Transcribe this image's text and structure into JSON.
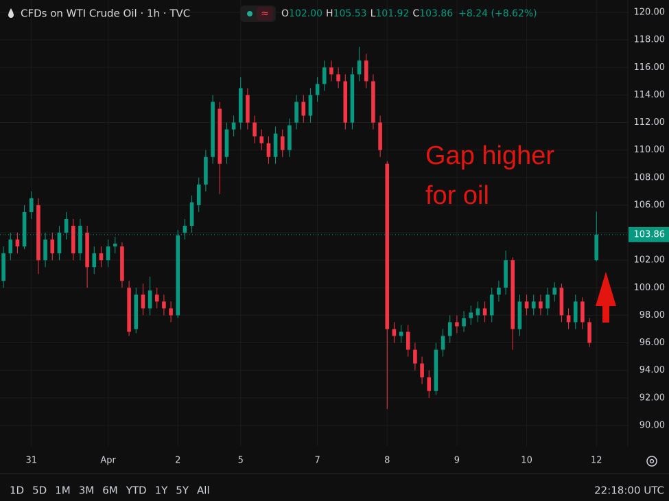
{
  "chart_data": {
    "type": "candlestick",
    "title": "CFDs on WTI Crude Oil · 1h · TVC",
    "ohlc_header": [
      {
        "key": "O",
        "value": "102.00"
      },
      {
        "key": "H",
        "value": "105.53"
      },
      {
        "key": "L",
        "value": "101.92"
      },
      {
        "key": "C",
        "value": "103.86"
      }
    ],
    "change": "+8.24 (+8.62%)",
    "annotation": [
      "Gap higher",
      "for oil"
    ],
    "up_color": "#089981",
    "down_color": "#f23645",
    "grid": true,
    "series": [
      {
        "open": [
          100.5,
          102.5,
          103.5,
          103,
          105.5,
          106,
          102,
          103.5,
          102.5,
          104,
          104.5,
          102.5,
          104,
          101.5,
          102.5,
          102,
          103,
          103,
          100,
          97,
          99.5,
          98.5,
          99.5,
          99,
          98.5,
          98,
          104,
          104.5,
          106,
          107.5,
          109.5,
          113,
          109.5,
          111.5,
          112,
          114,
          112,
          111,
          110.5,
          109.5,
          111,
          110,
          112,
          113.5,
          112.5,
          114,
          114.8,
          116,
          115.5,
          115,
          112,
          115.5,
          116.5,
          115,
          112,
          109,
          97,
          96.5,
          96.8,
          95.5,
          94.5,
          93.5,
          92.5,
          95.5,
          96.5,
          97.5,
          97.2,
          97.8,
          98,
          98.5,
          98,
          99.5,
          100,
          102,
          97,
          99,
          98.5,
          99,
          98.5,
          99.5,
          100,
          98,
          97.5,
          99,
          97.5,
          102
        ],
        "high": [
          103,
          104,
          104,
          106,
          107,
          106.5,
          104,
          104,
          104.5,
          105.5,
          105,
          105,
          104.5,
          103,
          103,
          103.5,
          103.7,
          103.3,
          100.5,
          100,
          100.3,
          100.8,
          100,
          99.5,
          99,
          104.2,
          105,
          106.7,
          108,
          110,
          114,
          113.5,
          112,
          112.5,
          115.3,
          114.5,
          112.5,
          111.5,
          111,
          111.7,
          111.5,
          112.3,
          114,
          114,
          114.5,
          115.3,
          116.5,
          116.5,
          116,
          115.5,
          116,
          117.5,
          117,
          115.5,
          112.5,
          109.2,
          97.5,
          97.3,
          97.3,
          96,
          95,
          94,
          96,
          97,
          98,
          98,
          98.3,
          98.7,
          99,
          99,
          100,
          100.5,
          102.7,
          102.2,
          99.5,
          99.5,
          99.5,
          99.5,
          100,
          100.4,
          100.3,
          98.5,
          99.5,
          99.3,
          97.8,
          105.53
        ],
        "low": [
          100,
          102,
          102.5,
          102.8,
          105,
          101,
          101.5,
          102,
          102,
          103.5,
          102,
          102,
          100,
          101,
          101.5,
          101.5,
          102.5,
          100,
          96.5,
          96.7,
          98,
          98,
          98.5,
          98,
          97.5,
          97.8,
          103.5,
          104,
          105.5,
          107,
          109,
          106.8,
          109,
          111,
          111.5,
          111.5,
          110.5,
          110,
          109,
          109,
          109.5,
          109.5,
          111.5,
          112,
          112,
          113.5,
          114.3,
          115,
          114.5,
          111.5,
          111.5,
          115,
          114.5,
          111.5,
          109.5,
          91.2,
          96,
          96,
          95,
          94,
          93,
          92,
          92.2,
          95,
          96,
          96.7,
          96.8,
          97.3,
          97.5,
          97.5,
          97.5,
          99,
          99.5,
          95.5,
          96.5,
          98,
          98,
          98,
          98,
          99,
          97.5,
          97,
          97,
          97,
          95.7,
          101.92
        ],
        "close": [
          102.5,
          103.5,
          103,
          105.5,
          106.5,
          102,
          103.5,
          102.5,
          104,
          105,
          102.5,
          104.5,
          101.5,
          102.5,
          102,
          103,
          103.2,
          100.5,
          96.8,
          99.5,
          98.5,
          99.8,
          99,
          98.5,
          98,
          103.8,
          104.5,
          106.2,
          107.5,
          109.5,
          113.5,
          109,
          111.5,
          112,
          114.5,
          112,
          111,
          110.5,
          109.5,
          111.2,
          110,
          111.8,
          113.5,
          112.5,
          114,
          114.8,
          116,
          115.5,
          115,
          112,
          115.5,
          116.5,
          115,
          112,
          110,
          97,
          96.5,
          96.8,
          95.5,
          94.5,
          93.5,
          92.5,
          95.5,
          96.5,
          97.5,
          97.2,
          97.8,
          98.2,
          98.5,
          98,
          99.5,
          100,
          102,
          97,
          99,
          98.5,
          99,
          98.5,
          99.5,
          100,
          98,
          97.5,
          99,
          97.5,
          96,
          103.86
        ]
      }
    ],
    "xlim": [
      -0.5,
      89.5
    ],
    "xticks": [
      {
        "value": 4,
        "label": "31"
      },
      {
        "value": 15,
        "label": "Apr"
      },
      {
        "value": 25,
        "label": "2"
      },
      {
        "value": 34,
        "label": "5"
      },
      {
        "value": 45,
        "label": "7"
      },
      {
        "value": 55,
        "label": "8"
      },
      {
        "value": 65,
        "label": "9"
      },
      {
        "value": 75,
        "label": "10"
      },
      {
        "value": 85,
        "label": "12"
      }
    ],
    "ylim": [
      88.5,
      120.9
    ],
    "yticks": [
      {
        "value": 90,
        "label": "90.00"
      },
      {
        "value": 92,
        "label": "92.00"
      },
      {
        "value": 94,
        "label": "94.00"
      },
      {
        "value": 96,
        "label": "96.00"
      },
      {
        "value": 98,
        "label": "98.00"
      },
      {
        "value": 100,
        "label": "100.00"
      },
      {
        "value": 102,
        "label": "102.00"
      },
      {
        "value": 104,
        "label": "104.00"
      },
      {
        "value": 106,
        "label": "106.00"
      },
      {
        "value": 108,
        "label": "108.00"
      },
      {
        "value": 110,
        "label": "110.00"
      },
      {
        "value": 112,
        "label": "112.00"
      },
      {
        "value": 114,
        "label": "114.00"
      },
      {
        "value": 116,
        "label": "116.00"
      },
      {
        "value": 118,
        "label": "118.00"
      },
      {
        "value": 120,
        "label": "120.00"
      }
    ]
  },
  "toolbar": {
    "ranges": [
      "1D",
      "5D",
      "1M",
      "3M",
      "6M",
      "YTD",
      "1Y",
      "5Y",
      "All"
    ],
    "clock": "22:18:00 UTC"
  }
}
